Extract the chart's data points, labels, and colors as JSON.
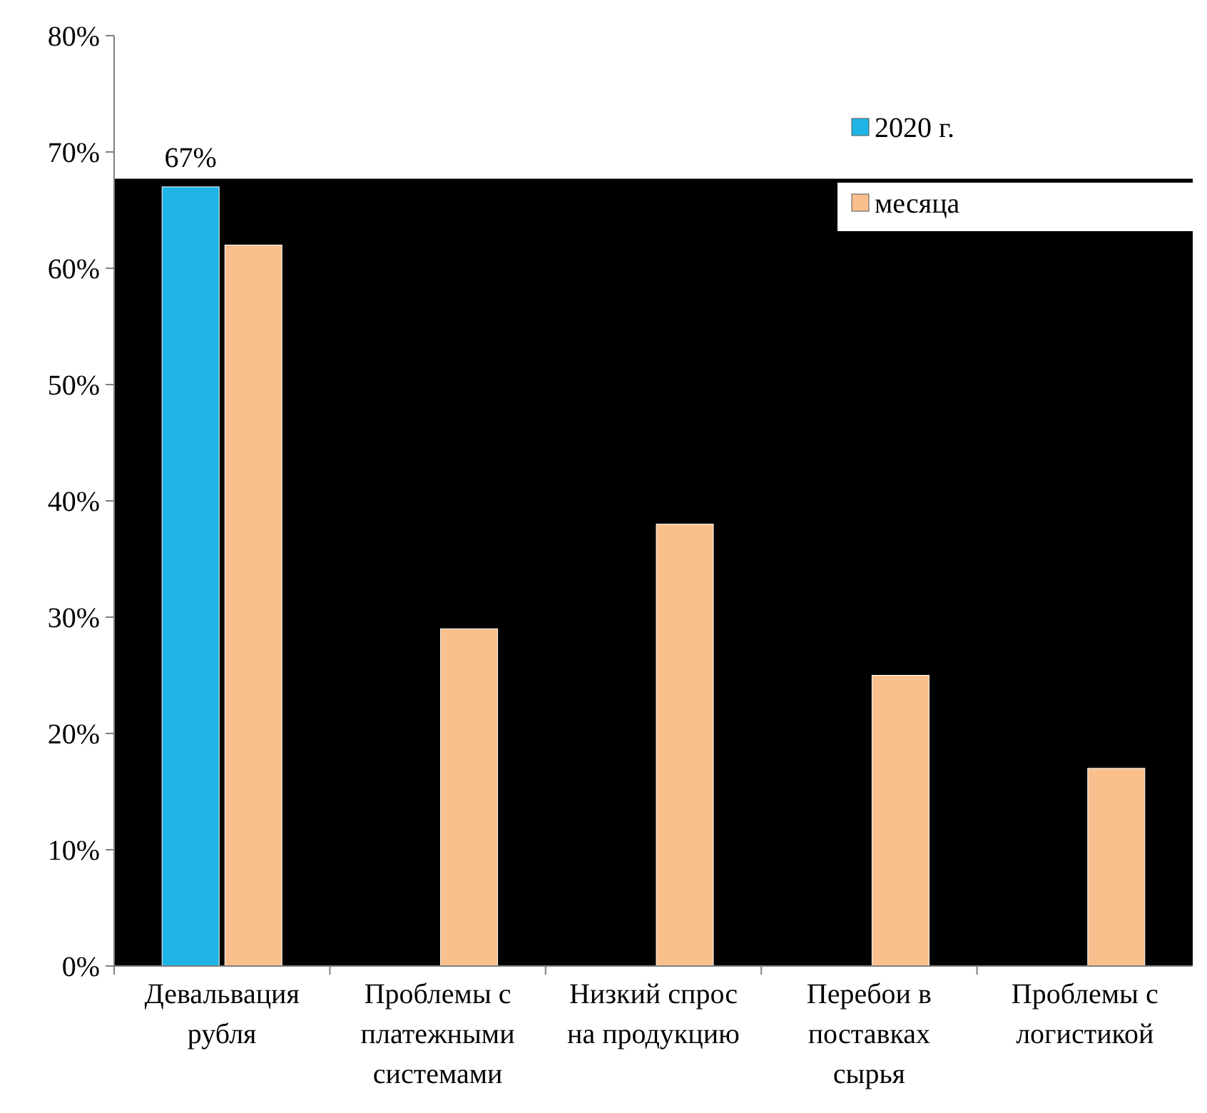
{
  "chart_data": {
    "type": "bar",
    "categories": [
      "Девальвация рубля",
      "Проблемы с платежными системами",
      "Низкий спрос на продукцию",
      "Перебои в поставках сырья",
      "Проблемы с логистикой"
    ],
    "series": [
      {
        "name": "2020 г.",
        "color": "#1fb4e6",
        "values": [
          67,
          null,
          null,
          null,
          null
        ],
        "value_labels": [
          "67%",
          null,
          null,
          null,
          null
        ]
      },
      {
        "name": "месяца",
        "color": "#f9c08e",
        "values": [
          62,
          29,
          38,
          25,
          17
        ]
      }
    ],
    "ylim": [
      0,
      80
    ],
    "yticks": [
      {
        "value": 0,
        "label": "0%"
      },
      {
        "value": 10,
        "label": "10%"
      },
      {
        "value": 20,
        "label": "20%"
      },
      {
        "value": 30,
        "label": "30%"
      },
      {
        "value": 40,
        "label": "40%"
      },
      {
        "value": 50,
        "label": "50%"
      },
      {
        "value": 60,
        "label": "60%"
      },
      {
        "value": 70,
        "label": "70%"
      },
      {
        "value": 80,
        "label": "80%"
      }
    ],
    "bands": [
      {
        "axis": "y",
        "from": 0,
        "to": 67.7,
        "color": "#000000"
      }
    ],
    "grid": false,
    "legend": "top right"
  }
}
